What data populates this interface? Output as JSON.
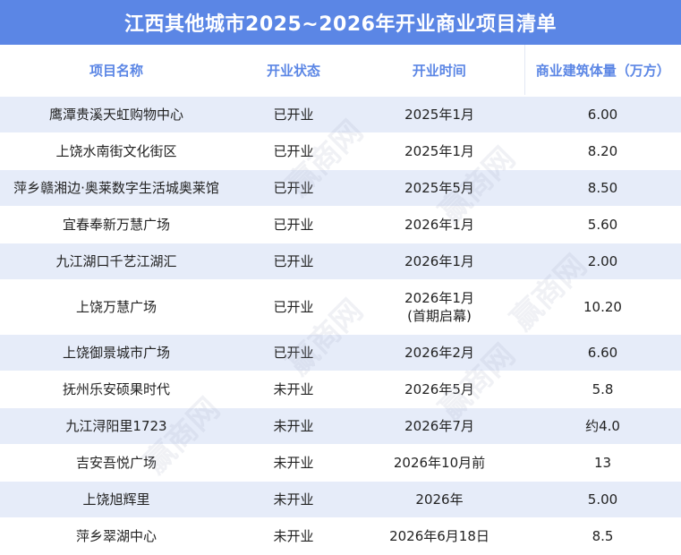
{
  "title": "江西其他城市2025~2026年开业商业项目清单",
  "headers": [
    "项目名称",
    "开业状态",
    "开业时间",
    "商业建筑体量（万方）"
  ],
  "rows": [
    {
      "name": "鹰潭贵溪天虹购物中心",
      "status": "已开业",
      "time": "2025年1月",
      "time2": "",
      "area": "6.00"
    },
    {
      "name": "上饶水南街文化街区",
      "status": "已开业",
      "time": "2025年1月",
      "time2": "",
      "area": "8.20"
    },
    {
      "name": "萍乡赣湘边·奥莱数字生活城奥莱馆",
      "status": "已开业",
      "time": "2025年5月",
      "time2": "",
      "area": "8.50"
    },
    {
      "name": "宜春奉新万慧广场",
      "status": "已开业",
      "time": "2026年1月",
      "time2": "",
      "area": "5.60"
    },
    {
      "name": "九江湖口千艺江湖汇",
      "status": "已开业",
      "time": "2026年1月",
      "time2": "",
      "area": "2.00"
    },
    {
      "name": "上饶万慧广场",
      "status": "已开业",
      "time": "2026年1月",
      "time2": "(首期启幕)",
      "area": "10.20"
    },
    {
      "name": "上饶御景城市广场",
      "status": "已开业",
      "time": "2026年2月",
      "time2": "",
      "area": "6.60"
    },
    {
      "name": "抚州乐安硕果时代",
      "status": "未开业",
      "time": "2026年5月",
      "time2": "",
      "area": "5.8"
    },
    {
      "name": "九江浔阳里1723",
      "status": "未开业",
      "time": "2026年7月",
      "time2": "",
      "area": "约4.0"
    },
    {
      "name": "吉安吾悦广场",
      "status": "未开业",
      "time": "2026年10月前",
      "time2": "",
      "area": "13"
    },
    {
      "name": "上饶旭辉里",
      "status": "未开业",
      "time": "2026年",
      "time2": "",
      "area": "5.00"
    },
    {
      "name": "萍乡翠湖中心",
      "status": "未开业",
      "time": "2026年6月18日",
      "time2": "",
      "area": "8.5"
    }
  ],
  "watermark": "赢商网",
  "colors": {
    "accent": "#5b86e5",
    "stripe": "#e6ecf9"
  }
}
